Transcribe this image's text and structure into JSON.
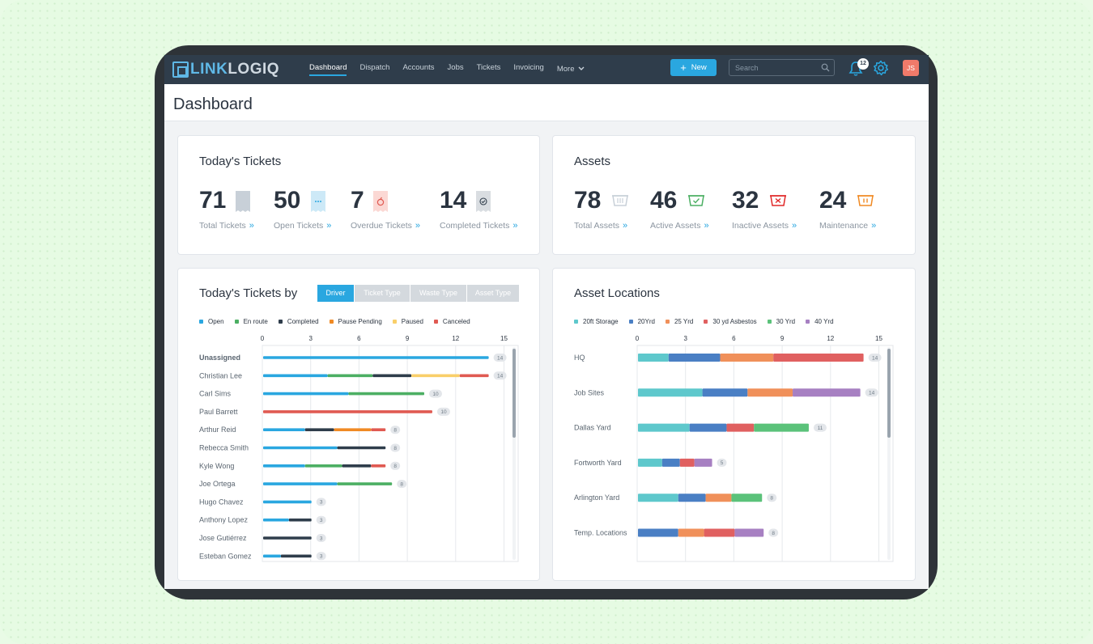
{
  "nav": {
    "logo_part1": "LINK",
    "logo_part2": "LOGIQ",
    "links": [
      "Dashboard",
      "Dispatch",
      "Accounts",
      "Jobs",
      "Tickets",
      "Invoicing",
      "More"
    ],
    "active": "Dashboard",
    "new_label": "New",
    "search_placeholder": "Search",
    "notif_count": "12",
    "avatar_initials": "JS"
  },
  "page_title": "Dashboard",
  "tickets": {
    "title": "Today's Tickets",
    "stats": [
      {
        "value": "71",
        "label": "Total Tickets",
        "icon": "ticket-icon"
      },
      {
        "value": "50",
        "label": "Open Tickets",
        "icon": "ticket-open-icon"
      },
      {
        "value": "7",
        "label": "Overdue Tickets",
        "icon": "ticket-overdue-icon"
      },
      {
        "value": "14",
        "label": "Completed Tickets",
        "icon": "ticket-completed-icon"
      }
    ]
  },
  "assets": {
    "title": "Assets",
    "stats": [
      {
        "value": "78",
        "label": "Total Assets",
        "icon": "dumpster-icon"
      },
      {
        "value": "46",
        "label": "Active Assets",
        "icon": "dumpster-active-icon"
      },
      {
        "value": "32",
        "label": "Inactive Assets",
        "icon": "dumpster-inactive-icon"
      },
      {
        "value": "24",
        "label": "Maintenance",
        "icon": "dumpster-maintenance-icon"
      }
    ]
  },
  "tickets_by": {
    "title": "Today's Tickets by",
    "tabs": [
      "Driver",
      "Ticket Type",
      "Waste Type",
      "Asset Type"
    ],
    "active_tab": "Driver"
  },
  "asset_locations": {
    "title": "Asset Locations"
  },
  "colors": {
    "open": "#2aa7e0",
    "enroute": "#4caf63",
    "completed": "#2f3d4b",
    "pause_pending": "#f08a24",
    "paused": "#f9cf6a",
    "canceled": "#e05a52",
    "storage20": "#5ec8cc",
    "yrd20": "#4a7fc4",
    "yrd25": "#f0905a",
    "asbestos30": "#e06060",
    "yrd30": "#5bc27a",
    "yrd40": "#a780c2"
  },
  "chart_data": [
    {
      "type": "bar",
      "orientation": "horizontal-stacked",
      "categories": [
        "Unassigned",
        "Christian Lee",
        "Carl Sims",
        "Paul Barrett",
        "Arthur Reid",
        "Rebecca Smith",
        "Kyle Wong",
        "Joe Ortega",
        "Hugo Chavez",
        "Anthony Lopez",
        "Jose Gutiérrez",
        "Esteban Gomez"
      ],
      "bold_category": "Unassigned",
      "series": [
        {
          "name": "Open",
          "color": "#2aa7e0",
          "values": [
            14,
            4,
            5.3,
            0,
            2.6,
            4.6,
            2.6,
            4.6,
            3,
            1.6,
            0,
            1.1
          ]
        },
        {
          "name": "En route",
          "color": "#4caf63",
          "values": [
            0,
            2.8,
            4.7,
            0,
            0,
            0,
            2.3,
            3.4,
            0,
            0,
            0,
            0
          ]
        },
        {
          "name": "Completed",
          "color": "#2f3d4b",
          "values": [
            0,
            2.4,
            0,
            0,
            1.8,
            3.0,
            1.8,
            0,
            0,
            1.4,
            3,
            1.9
          ]
        },
        {
          "name": "Pause Pending",
          "color": "#f08a24",
          "values": [
            0,
            0,
            0,
            0,
            2.3,
            0,
            0,
            0,
            0,
            0,
            0,
            0
          ]
        },
        {
          "name": "Paused",
          "color": "#f9cf6a",
          "values": [
            0,
            3.0,
            0,
            0,
            0,
            0,
            0,
            0,
            0,
            0,
            0,
            0
          ]
        },
        {
          "name": "Canceled",
          "color": "#e05a52",
          "values": [
            0,
            1.8,
            0,
            10.5,
            0.9,
            0,
            0.9,
            0,
            0,
            0,
            0,
            0
          ]
        }
      ],
      "totals": [
        14,
        14,
        10,
        10,
        8,
        8,
        8,
        8,
        3,
        3,
        3,
        3
      ],
      "xticks": [
        0,
        3,
        6,
        9,
        12,
        15
      ],
      "xlim": [
        0,
        15
      ]
    },
    {
      "type": "bar",
      "orientation": "horizontal-stacked",
      "categories": [
        "HQ",
        "Job Sites",
        "Dallas Yard",
        "Fortworth Yard",
        "Arlington Yard",
        "Temp. Locations"
      ],
      "series": [
        {
          "name": "20ft Storage",
          "color": "#5ec8cc",
          "values": [
            1.9,
            4.0,
            3.2,
            1.5,
            2.5,
            0
          ]
        },
        {
          "name": "20Yrd",
          "color": "#4a7fc4",
          "values": [
            3.2,
            2.8,
            2.3,
            1.1,
            1.7,
            2.5
          ]
        },
        {
          "name": "25 Yrd",
          "color": "#f0905a",
          "values": [
            3.3,
            2.8,
            0,
            0,
            1.6,
            1.6
          ]
        },
        {
          "name": "30 yd Asbestos",
          "color": "#e06060",
          "values": [
            5.6,
            0,
            1.7,
            0.9,
            0,
            1.9
          ]
        },
        {
          "name": "30 Yrd",
          "color": "#5bc27a",
          "values": [
            0,
            0,
            3.4,
            0,
            1.9,
            0
          ]
        },
        {
          "name": "40 Yrd",
          "color": "#a780c2",
          "values": [
            0,
            4.2,
            0,
            1.1,
            0,
            1.8
          ]
        }
      ],
      "totals": [
        14,
        14,
        11,
        5,
        8,
        8
      ],
      "xticks": [
        0,
        3,
        6,
        9,
        12,
        15
      ],
      "xlim": [
        0,
        15
      ]
    }
  ]
}
